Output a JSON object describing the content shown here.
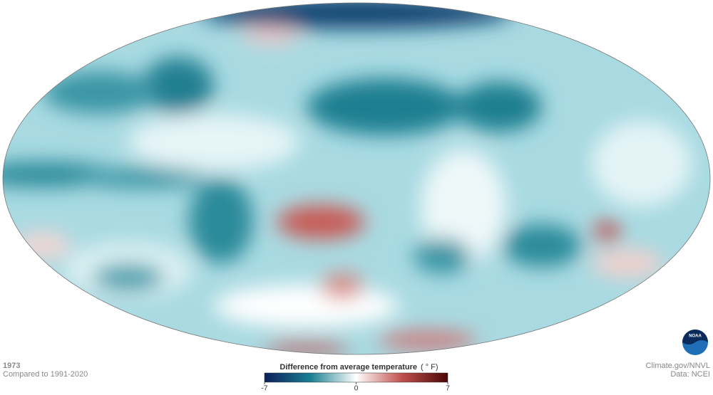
{
  "header": {
    "year": "1973",
    "baseline": "Compared to 1991-2020"
  },
  "colorbar": {
    "title": "Difference from average temperature",
    "unit": "( ° F)",
    "range": [
      -7,
      7
    ],
    "ticks": [
      -7,
      0,
      7
    ],
    "colors": [
      "#0b1f5c",
      "#1a7f91",
      "#ffffff",
      "#c0504d",
      "#4a0606"
    ]
  },
  "credits": {
    "source": "Climate.gov/NNVL",
    "data": "Data: NCEI",
    "logo": "NOAA"
  }
}
